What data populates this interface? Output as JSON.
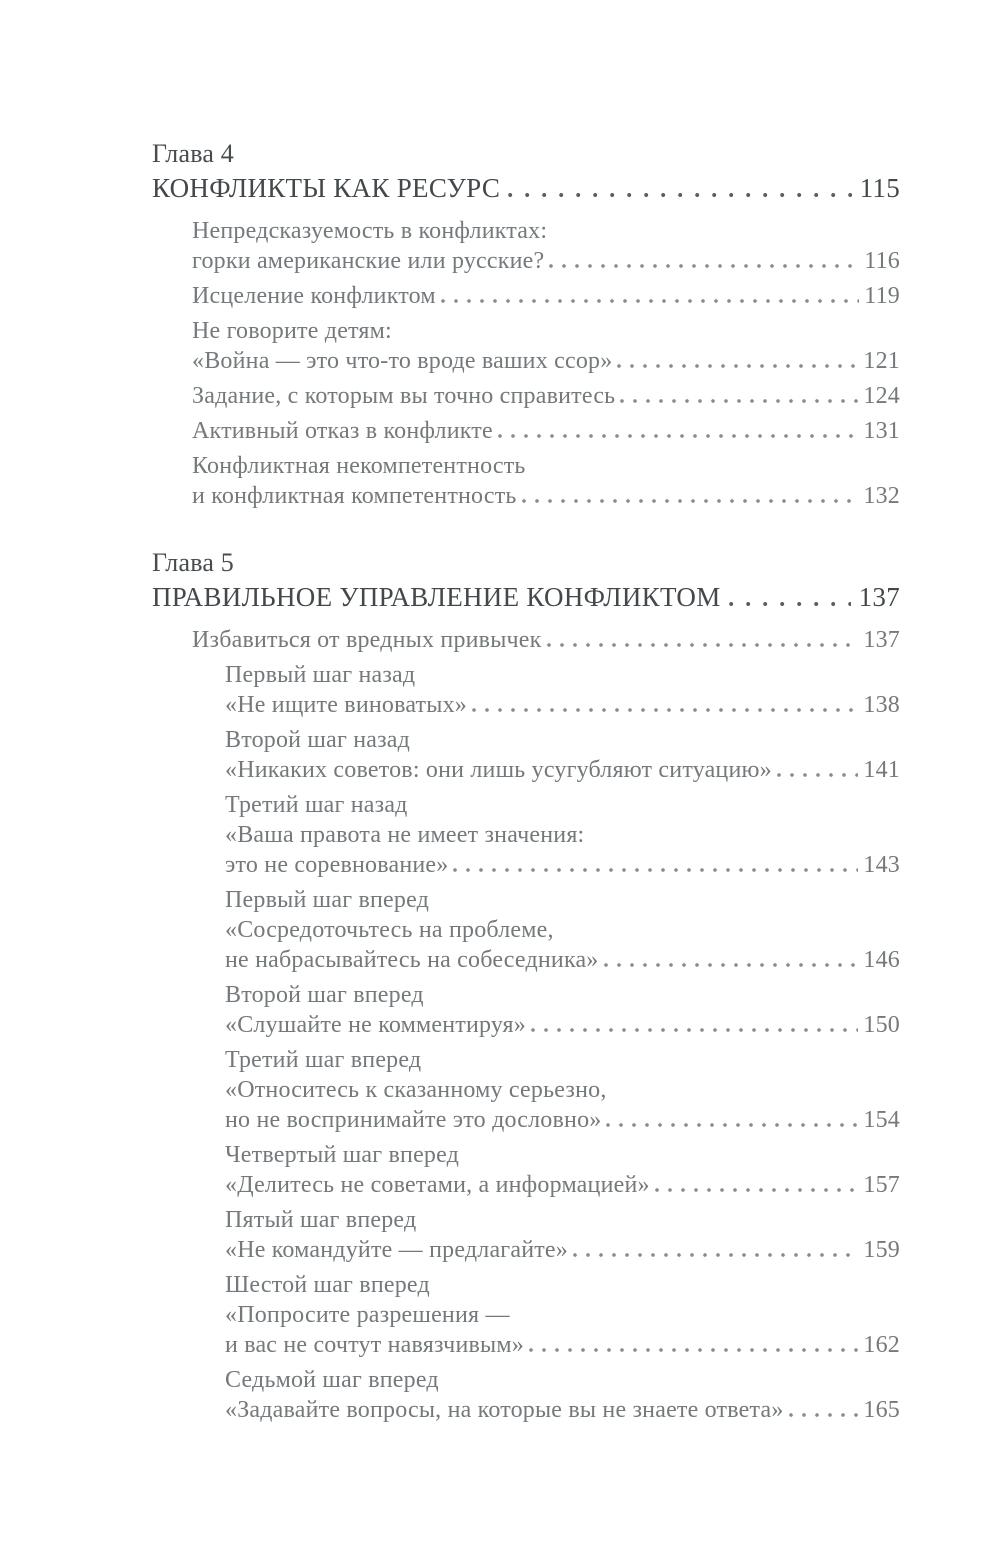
{
  "toc": {
    "chapters": [
      {
        "label": "Глава 4",
        "title": "КОНФЛИКТЫ КАК РЕСУРС",
        "page": "115",
        "entries": [
          {
            "level": 1,
            "lines": [
              "Непредсказуемость в конфликтах:",
              "горки американские или русские?"
            ],
            "page": "116"
          },
          {
            "level": 1,
            "lines": [
              "Исцеление конфликтом"
            ],
            "page": "119"
          },
          {
            "level": 1,
            "lines": [
              "Не говорите детям:",
              "«Война — это что-то вроде ваших ссор»"
            ],
            "page": "121"
          },
          {
            "level": 1,
            "lines": [
              "Задание, с которым вы точно справитесь"
            ],
            "page": "124"
          },
          {
            "level": 1,
            "lines": [
              "Активный отказ в конфликте"
            ],
            "page": "131"
          },
          {
            "level": 1,
            "lines": [
              "Конфликтная некомпетентность",
              "и конфликтная компетентность"
            ],
            "page": "132"
          }
        ]
      },
      {
        "label": "Глава 5",
        "title": "ПРАВИЛЬНОЕ УПРАВЛЕНИЕ КОНФЛИКТОМ",
        "page": "137",
        "entries": [
          {
            "level": 1,
            "lines": [
              "Избавиться от вредных привычек"
            ],
            "page": "137"
          },
          {
            "level": 2,
            "lines": [
              "Первый шаг назад",
              "«Не ищите виноватых»"
            ],
            "page": "138"
          },
          {
            "level": 2,
            "lines": [
              "Второй шаг назад",
              "«Никаких советов: они лишь усугубляют ситуацию»"
            ],
            "page": "141"
          },
          {
            "level": 2,
            "lines": [
              "Третий шаг назад",
              "«Ваша правота не имеет значения:",
              "это не соревнование»"
            ],
            "page": "143"
          },
          {
            "level": 2,
            "lines": [
              "Первый шаг вперед",
              "«Сосредоточьтесь на проблеме,",
              "не набрасывайтесь на собеседника»"
            ],
            "page": "146"
          },
          {
            "level": 2,
            "lines": [
              "Второй шаг вперед",
              "«Слушайте не комментируя»"
            ],
            "page": "150"
          },
          {
            "level": 2,
            "lines": [
              "Третий шаг вперед",
              "«Относитесь к сказанному серьезно,",
              "но не воспринимайте это дословно»"
            ],
            "page": "154"
          },
          {
            "level": 2,
            "lines": [
              "Четвертый шаг вперед",
              "«Делитесь не советами, а информацией»"
            ],
            "page": "157"
          },
          {
            "level": 2,
            "lines": [
              "Пятый шаг вперед",
              "«Не командуйте — предлагайте»"
            ],
            "page": "159"
          },
          {
            "level": 2,
            "lines": [
              "Шестой шаг вперед",
              "«Попросите разрешения —",
              "и вас не сочтут навязчивым»"
            ],
            "page": "162"
          },
          {
            "level": 2,
            "lines": [
              "Седьмой шаг вперед",
              "«Задавайте вопросы, на которые вы не знаете ответа»"
            ],
            "page": "165"
          }
        ]
      }
    ]
  }
}
